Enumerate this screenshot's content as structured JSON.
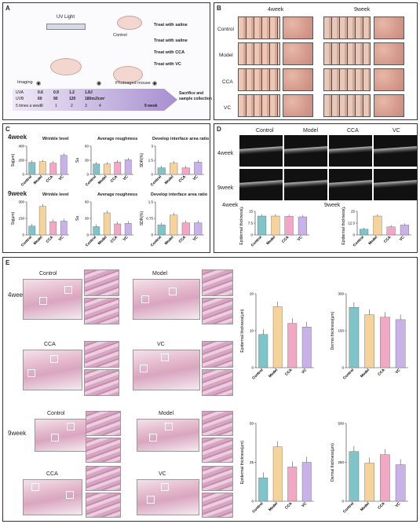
{
  "panels": {
    "A": "A",
    "B": "B",
    "C": "C",
    "D": "D",
    "E": "E"
  },
  "panelA": {
    "uv_light": "UV Light",
    "control": "Control",
    "treat_saline_1": "Treat with saline",
    "treat_saline_2": "Treat with saline",
    "treat_cca": "Treat with CCA",
    "treat_vc": "Treat with VC",
    "photoaged": "Photoaged mouse",
    "imaging": "Imaging",
    "uva_label": "UVA",
    "uva_vals": [
      "0.6",
      "0.9",
      "1.2",
      "1.8J"
    ],
    "uvb_label": "UVB",
    "uvb_vals": [
      "60",
      "90",
      "120",
      "180mJ/cm²"
    ],
    "freq_label": "5 times a week",
    "weeks": [
      "0",
      "1",
      "2",
      "3",
      "4"
    ],
    "week9": "9 week",
    "end1": "Sacrifice and",
    "end2": "sample collection"
  },
  "panelB": {
    "week4": "4week",
    "week9": "9week",
    "groups": [
      "Control",
      "Model",
      "CCA",
      "VC"
    ]
  },
  "panelC": {
    "row1": "4week",
    "row2": "9week",
    "titles": [
      "Wrinkle level",
      "Average roughness",
      "Develop interface area ratio"
    ],
    "titles2": [
      "Wrinkle level",
      "Average roughness",
      "Develop interface area ratio"
    ],
    "ylabels": [
      "Sq(μm)",
      "Sa",
      "SDR(%)"
    ],
    "groups": [
      "Control",
      "Model",
      "CCA",
      "VC"
    ]
  },
  "panelD": {
    "cols": [
      "Control",
      "Model",
      "CCA",
      "VC"
    ],
    "row1": "4week",
    "row2": "9week",
    "ylabel": "Epidermal thickness(μm)",
    "sub1": "4week",
    "sub2": "9week"
  },
  "panelE": {
    "row1": "4week",
    "row2": "9week",
    "labels4": [
      "Control",
      "Model",
      "CCA",
      "VC"
    ],
    "labels9": [
      "Control",
      "Model",
      "CCA",
      "VC"
    ],
    "y_epi": "Epidermal thickness(μm)",
    "y_derm": "Dermis thickness(μm)",
    "y_epi2": "Epidermal thickness(μm)",
    "y_derm2": "Dermal thickness(μm)",
    "groups": [
      "Control",
      "Model",
      "CCA",
      "VC"
    ]
  },
  "colors": {
    "control": "#7fc4c9",
    "model": "#f6d39a",
    "cca": "#f2a8c4",
    "vc": "#c9b2ea"
  },
  "chart_data": [
    {
      "type": "bar",
      "id": "C-4w-wrinkle",
      "title": "Wrinkle level",
      "ylabel": "Sq(μm)",
      "categories": [
        "Control",
        "Model",
        "CCA",
        "VC"
      ],
      "values": [
        170,
        180,
        160,
        270
      ],
      "ylim": [
        0,
        400
      ]
    },
    {
      "type": "bar",
      "id": "C-4w-rough",
      "title": "Average roughness",
      "ylabel": "Sa",
      "categories": [
        "Control",
        "Model",
        "CCA",
        "VC"
      ],
      "values": [
        22,
        22,
        26,
        31
      ],
      "ylim": [
        0,
        60
      ]
    },
    {
      "type": "bar",
      "id": "C-4w-sdr",
      "title": "Develop interface area ratio",
      "ylabel": "SDR(%)",
      "categories": [
        "Control",
        "Model",
        "CCA",
        "VC"
      ],
      "values": [
        0.7,
        1.2,
        0.7,
        1.3
      ],
      "ylim": [
        0,
        3
      ]
    },
    {
      "type": "bar",
      "id": "C-9w-wrinkle",
      "title": "Wrinkle level",
      "ylabel": "Sq(μm)",
      "categories": [
        "Control",
        "Model",
        "CCA",
        "VC"
      ],
      "values": [
        80,
        260,
        120,
        125
      ],
      "ylim": [
        0,
        300
      ]
    },
    {
      "type": "bar",
      "id": "C-9w-rough",
      "title": "Average roughness",
      "ylabel": "Sa",
      "categories": [
        "Control",
        "Model",
        "CCA",
        "VC"
      ],
      "values": [
        15,
        40,
        20,
        21
      ],
      "ylim": [
        0,
        60
      ]
    },
    {
      "type": "bar",
      "id": "C-9w-sdr",
      "title": "Develop interface area ratio",
      "ylabel": "SDR(%)",
      "categories": [
        "Control",
        "Model",
        "CCA",
        "VC"
      ],
      "values": [
        0.45,
        0.9,
        0.55,
        0.55
      ],
      "ylim": [
        0,
        1.5
      ]
    },
    {
      "type": "bar",
      "id": "D-4w",
      "ylabel": "Epidermal thickness(μm)",
      "categories": [
        "Control",
        "Model",
        "CCA",
        "VC"
      ],
      "values": [
        12,
        12,
        11.8,
        11.5
      ],
      "ylim": [
        0,
        15
      ]
    },
    {
      "type": "bar",
      "id": "D-9w",
      "ylabel": "Epidermal thickness(μm)",
      "categories": [
        "Control",
        "Model",
        "CCA",
        "VC"
      ],
      "values": [
        6,
        20,
        8.5,
        10.5
      ],
      "ylim": [
        0,
        25
      ]
    },
    {
      "type": "bar",
      "id": "E-4w-epi",
      "ylabel": "Epidermal thickness(μm)",
      "categories": [
        "Control",
        "Model",
        "CCA",
        "VC"
      ],
      "values": [
        9,
        16.5,
        12,
        11
      ],
      "ylim": [
        0,
        20
      ]
    },
    {
      "type": "bar",
      "id": "E-4w-derm",
      "ylabel": "Dermis thickness(μm)",
      "categories": [
        "Control",
        "Model",
        "CCA",
        "VC"
      ],
      "values": [
        245,
        215,
        205,
        195
      ],
      "ylim": [
        0,
        300
      ]
    },
    {
      "type": "bar",
      "id": "E-9w-epi",
      "ylabel": "Epidermal thickness(μm)",
      "categories": [
        "Control",
        "Model",
        "CCA",
        "VC"
      ],
      "values": [
        15,
        35,
        22,
        25
      ],
      "ylim": [
        0,
        50
      ]
    },
    {
      "type": "bar",
      "id": "E-9w-derm",
      "ylabel": "Dermal thickness(μm)",
      "categories": [
        "Control",
        "Model",
        "CCA",
        "VC"
      ],
      "values": [
        320,
        245,
        300,
        235
      ],
      "ylim": [
        0,
        500
      ]
    }
  ]
}
